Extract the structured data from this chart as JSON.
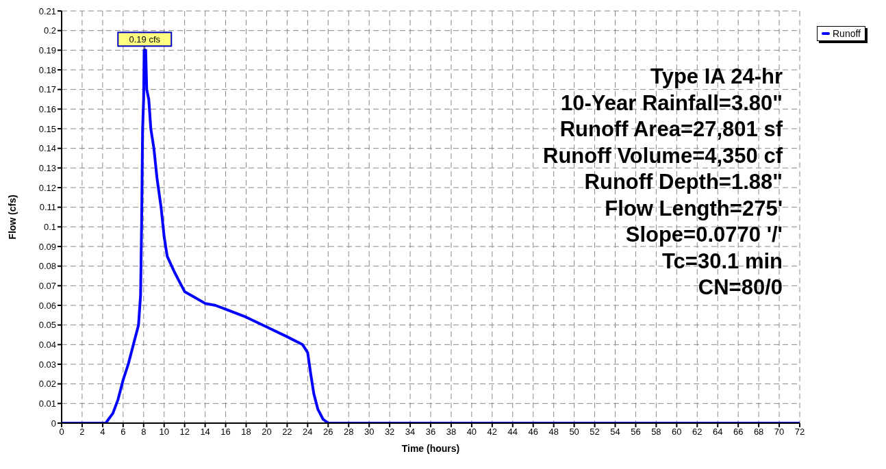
{
  "chart_data": {
    "type": "line",
    "xlabel": "Time  (hours)",
    "ylabel": "Flow  (cfs)",
    "x": [
      0,
      4.3,
      5,
      5.5,
      6,
      6.5,
      7,
      7.5,
      7.7,
      7.8,
      7.9,
      8,
      8.05,
      8.2,
      8.3,
      8.5,
      8.7,
      9,
      9.3,
      9.7,
      10,
      10.3,
      11,
      11.5,
      12,
      13,
      14,
      15,
      16,
      18,
      20,
      22,
      23.5,
      24,
      24.3,
      24.6,
      25,
      25.5,
      26,
      72
    ],
    "series": [
      {
        "name": "Runoff",
        "color": "#0000ff",
        "values": [
          0,
          0,
          0.005,
          0.012,
          0.022,
          0.03,
          0.04,
          0.05,
          0.065,
          0.1,
          0.15,
          0.165,
          0.19,
          0.19,
          0.17,
          0.165,
          0.15,
          0.14,
          0.125,
          0.11,
          0.095,
          0.085,
          0.077,
          0.072,
          0.067,
          0.064,
          0.061,
          0.06,
          0.058,
          0.054,
          0.049,
          0.044,
          0.04,
          0.036,
          0.025,
          0.015,
          0.007,
          0.002,
          0,
          0
        ]
      }
    ],
    "xlim": [
      0,
      72
    ],
    "xticks": [
      0,
      2,
      4,
      6,
      8,
      10,
      12,
      14,
      16,
      18,
      20,
      22,
      24,
      26,
      28,
      30,
      32,
      34,
      36,
      38,
      40,
      42,
      44,
      46,
      48,
      50,
      52,
      54,
      56,
      58,
      60,
      62,
      64,
      66,
      68,
      70,
      72
    ],
    "ylim": [
      0,
      0.21
    ],
    "yticks": [
      0,
      0.01,
      0.02,
      0.03,
      0.04,
      0.05,
      0.06,
      0.07,
      0.08,
      0.09,
      0.1,
      0.11,
      0.12,
      0.13,
      0.14,
      0.15,
      0.16,
      0.17,
      0.18,
      0.19,
      0.2,
      0.21
    ],
    "grid": true,
    "legend": "top right",
    "marker": "none",
    "line_style": "solid",
    "annotations": [
      {
        "text": "0.19 cfs",
        "x": 8.1,
        "y": 0.19
      },
      "Type IA 24-hr",
      "10-Year Rainfall=3.80\"",
      "Runoff Area=27,801 sf",
      "Runoff Volume=4,350 cf",
      "Runoff Depth=1.88\"",
      "Flow Length=275'",
      "Slope=0.0770 '/'",
      "Tc=30.1 min",
      "CN=80/0"
    ]
  }
}
